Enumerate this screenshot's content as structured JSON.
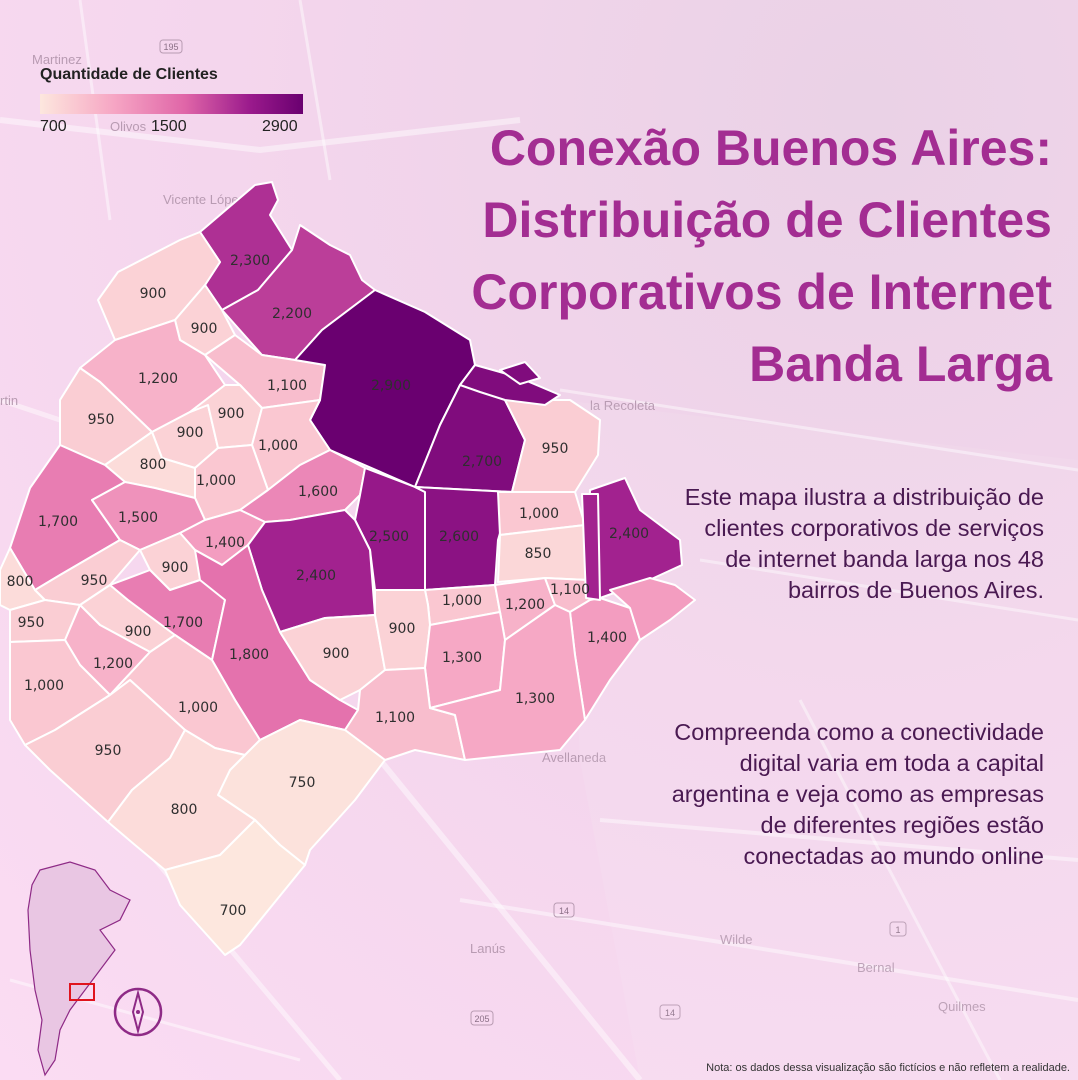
{
  "title": "Conexão Buenos Aires: Distribuição de Clientes Corporativos de Internet Banda Larga",
  "description_1": "Este mapa ilustra a distribuição de clientes corporativos de serviços de internet banda larga nos 48 bairros de Buenos Aires.",
  "description_2": "Compreenda como a conectividade digital varia em toda a capital argentina e veja como as empresas de diferentes regiões estão conectadas ao mundo online",
  "note": "Nota: os dados dessa visualização são fictícios e não refletem a realidade.",
  "legend": {
    "title": "Quantidade de Clientes",
    "ticks": [
      "700",
      "1500",
      "2900"
    ],
    "min": 700,
    "max": 2900
  },
  "background_places": [
    "Martinez",
    "Olivos",
    "Vicente López",
    "rtin",
    "la Recoleta",
    "Avellaneda",
    "Lanús",
    "Wilde",
    "Bernal",
    "Quilmes",
    "195",
    "14",
    "205",
    "14",
    "1"
  ],
  "neighborhoods": [
    {
      "id": "n1",
      "label": "2,300",
      "value": 2300
    },
    {
      "id": "n2",
      "label": "2,200",
      "value": 2200
    },
    {
      "id": "n3",
      "label": "900",
      "value": 900
    },
    {
      "id": "n4",
      "label": "900",
      "value": 900
    },
    {
      "id": "n5",
      "label": "1,200",
      "value": 1200
    },
    {
      "id": "n6",
      "label": "1,100",
      "value": 1100
    },
    {
      "id": "n7",
      "label": "2,900",
      "value": 2900
    },
    {
      "id": "n8",
      "label": "2,700",
      "value": 2700
    },
    {
      "id": "n9",
      "label": "950",
      "value": 950
    },
    {
      "id": "n10",
      "label": "950",
      "value": 950
    },
    {
      "id": "n11",
      "label": "900",
      "value": 900
    },
    {
      "id": "n12",
      "label": "900",
      "value": 900
    },
    {
      "id": "n13",
      "label": "1,000",
      "value": 1000
    },
    {
      "id": "n14",
      "label": "800",
      "value": 800
    },
    {
      "id": "n15",
      "label": "1,000",
      "value": 1000
    },
    {
      "id": "n16",
      "label": "1,600",
      "value": 1600
    },
    {
      "id": "n17",
      "label": "1,700",
      "value": 1700
    },
    {
      "id": "n18",
      "label": "1,500",
      "value": 1500
    },
    {
      "id": "n19",
      "label": "1,400",
      "value": 1400
    },
    {
      "id": "n20",
      "label": "2,500",
      "value": 2500
    },
    {
      "id": "n21",
      "label": "2,600",
      "value": 2600
    },
    {
      "id": "n22",
      "label": "1,000",
      "value": 1000
    },
    {
      "id": "n23",
      "label": "2,400",
      "value": 2400
    },
    {
      "id": "n24",
      "label": "850",
      "value": 850
    },
    {
      "id": "n25",
      "label": "800",
      "value": 800
    },
    {
      "id": "n26",
      "label": "950",
      "value": 950
    },
    {
      "id": "n27",
      "label": "900",
      "value": 900
    },
    {
      "id": "n28",
      "label": "2,400",
      "value": 2400
    },
    {
      "id": "n29",
      "label": "950",
      "value": 950
    },
    {
      "id": "n30",
      "label": "900",
      "value": 900
    },
    {
      "id": "n31",
      "label": "1,700",
      "value": 1700
    },
    {
      "id": "n32",
      "label": "1,000",
      "value": 1000
    },
    {
      "id": "n33",
      "label": "1,200",
      "value": 1200
    },
    {
      "id": "n34",
      "label": "1,100",
      "value": 1100
    },
    {
      "id": "n35",
      "label": "1,200",
      "value": 1200
    },
    {
      "id": "n36",
      "label": "1,800",
      "value": 1800
    },
    {
      "id": "n37",
      "label": "900",
      "value": 900
    },
    {
      "id": "n38",
      "label": "900",
      "value": 900
    },
    {
      "id": "n39",
      "label": "1,300",
      "value": 1300
    },
    {
      "id": "n40",
      "label": "1,400",
      "value": 1400
    },
    {
      "id": "n41",
      "label": "1,000",
      "value": 1000
    },
    {
      "id": "n42",
      "label": "1,000",
      "value": 1000
    },
    {
      "id": "n43",
      "label": "1,100",
      "value": 1100
    },
    {
      "id": "n44",
      "label": "1,300",
      "value": 1300
    },
    {
      "id": "n45",
      "label": "950",
      "value": 950
    },
    {
      "id": "n46",
      "label": "750",
      "value": 750
    },
    {
      "id": "n47",
      "label": "800",
      "value": 800
    },
    {
      "id": "n48",
      "label": "700",
      "value": 700
    }
  ],
  "colors": {
    "accent_title": "#a32d92",
    "scale": [
      "#fde7de",
      "#f6a6c4",
      "#e066a8",
      "#9a1a8c",
      "#6a0070"
    ],
    "inset_highlight": "#e0141e"
  },
  "icons": [
    "compass-icon",
    "argentina-inset-map"
  ]
}
